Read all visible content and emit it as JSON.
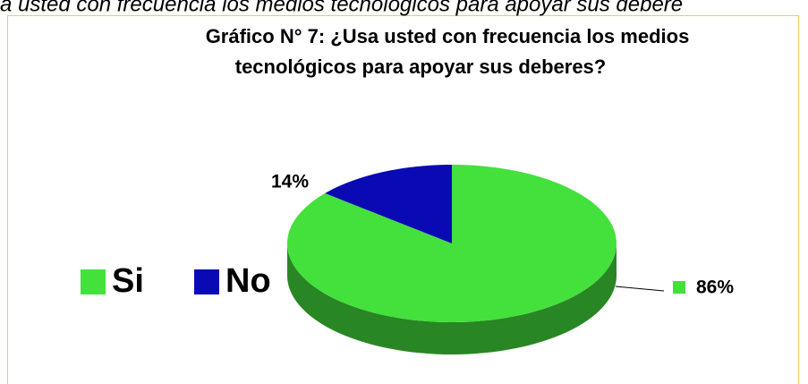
{
  "chart_data": {
    "type": "pie",
    "top_text": "a usted con frecuencia los medios tecnológicos para apoyar sus debere",
    "title_lines": [
      "Gráfico N° 7: ¿Usa usted con frecuencia los medios",
      "tecnológicos para apoyar sus deberes?"
    ],
    "categories": [
      "Si",
      "No"
    ],
    "values": [
      86,
      14
    ],
    "value_labels": [
      "86%",
      "14%"
    ],
    "colors": [
      "#44e03c",
      "#0a0ab4"
    ],
    "legend": "left"
  }
}
